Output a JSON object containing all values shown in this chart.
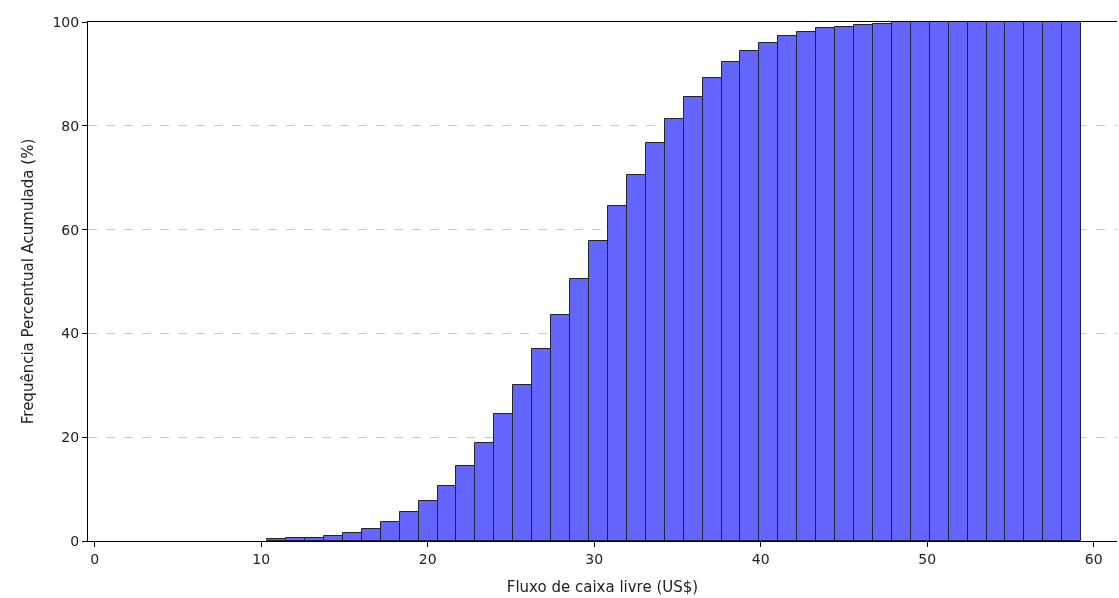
{
  "chart_data": {
    "type": "histogram",
    "xlabel": "Fluxo de caixa livre (US$)",
    "ylabel": "Frequência Percentual Acumulada (%)",
    "bins": [
      2.4,
      3.537,
      4.674,
      5.811,
      6.948,
      8.085,
      9.222,
      10.359,
      11.496,
      12.633,
      13.77,
      14.907,
      16.044,
      17.181,
      18.318,
      19.455,
      20.592,
      21.729,
      22.866,
      24.003,
      25.14,
      26.277,
      27.414,
      28.551,
      29.688,
      30.825,
      31.962,
      33.099,
      34.236,
      35.373,
      36.51,
      37.647,
      38.784,
      39.921,
      41.058,
      42.195,
      43.332,
      44.469,
      45.606,
      46.743,
      47.88,
      49.017,
      50.154,
      51.291,
      52.428,
      53.565,
      54.702,
      55.839,
      56.976,
      58.113,
      59.25
    ],
    "values": [
      null,
      null,
      null,
      null,
      null,
      null,
      null,
      0.3,
      0.6,
      0.6,
      1.0,
      1.5,
      2.4,
      3.7,
      5.5,
      7.8,
      10.6,
      14.5,
      18.9,
      24.4,
      30.1,
      36.9,
      43.5,
      50.5,
      57.9,
      64.5,
      70.5,
      76.6,
      81.4,
      85.6,
      89.2,
      92.2,
      94.4,
      96.0,
      97.3,
      98.1,
      98.8,
      99.1,
      99.4,
      99.7,
      100,
      100,
      100,
      100,
      100,
      100,
      100,
      100,
      100,
      100
    ],
    "color": "#6464ff",
    "xlim": [
      -0.4,
      61.4
    ],
    "xticks": [
      0,
      10,
      20,
      30,
      40,
      50,
      60
    ],
    "ylim": [
      0,
      100
    ],
    "yticks": [
      0,
      20,
      40,
      60,
      80,
      100
    ],
    "grid": "y",
    "line_style": "dashed"
  }
}
